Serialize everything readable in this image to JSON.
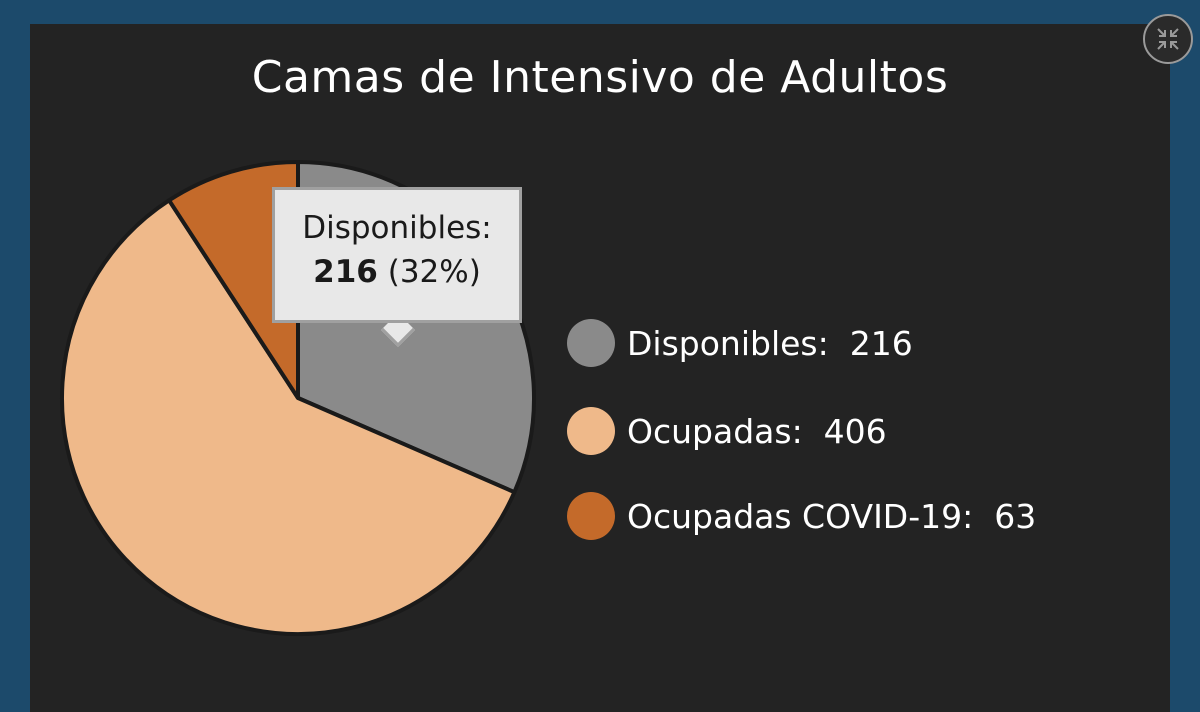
{
  "chart_data": {
    "type": "pie",
    "title": "Camas de Intensivo de Adultos",
    "categories": [
      "Disponibles",
      "Ocupadas",
      "Ocupadas COVID-19"
    ],
    "values": [
      216,
      406,
      63
    ],
    "colors": [
      "#8a8a8a",
      "#efb98a",
      "#c46a2a"
    ],
    "start_angle_deg": 0,
    "legend_position": "right",
    "legend": [
      {
        "label": "Disponibles:",
        "value": "216",
        "color": "#8a8a8a"
      },
      {
        "label": "Ocupadas:",
        "value": "406",
        "color": "#efb98a"
      },
      {
        "label": "Ocupadas COVID-19:",
        "value": "63",
        "color": "#c46a2a"
      }
    ],
    "tooltip": {
      "label": "Disponibles:",
      "value": "216",
      "percent": "(32%)"
    }
  },
  "controls": {
    "collapse_icon": "collapse-arrows-icon"
  },
  "colors": {
    "background": "#1c4a6b",
    "panel": "#232323",
    "text": "#ffffff"
  }
}
